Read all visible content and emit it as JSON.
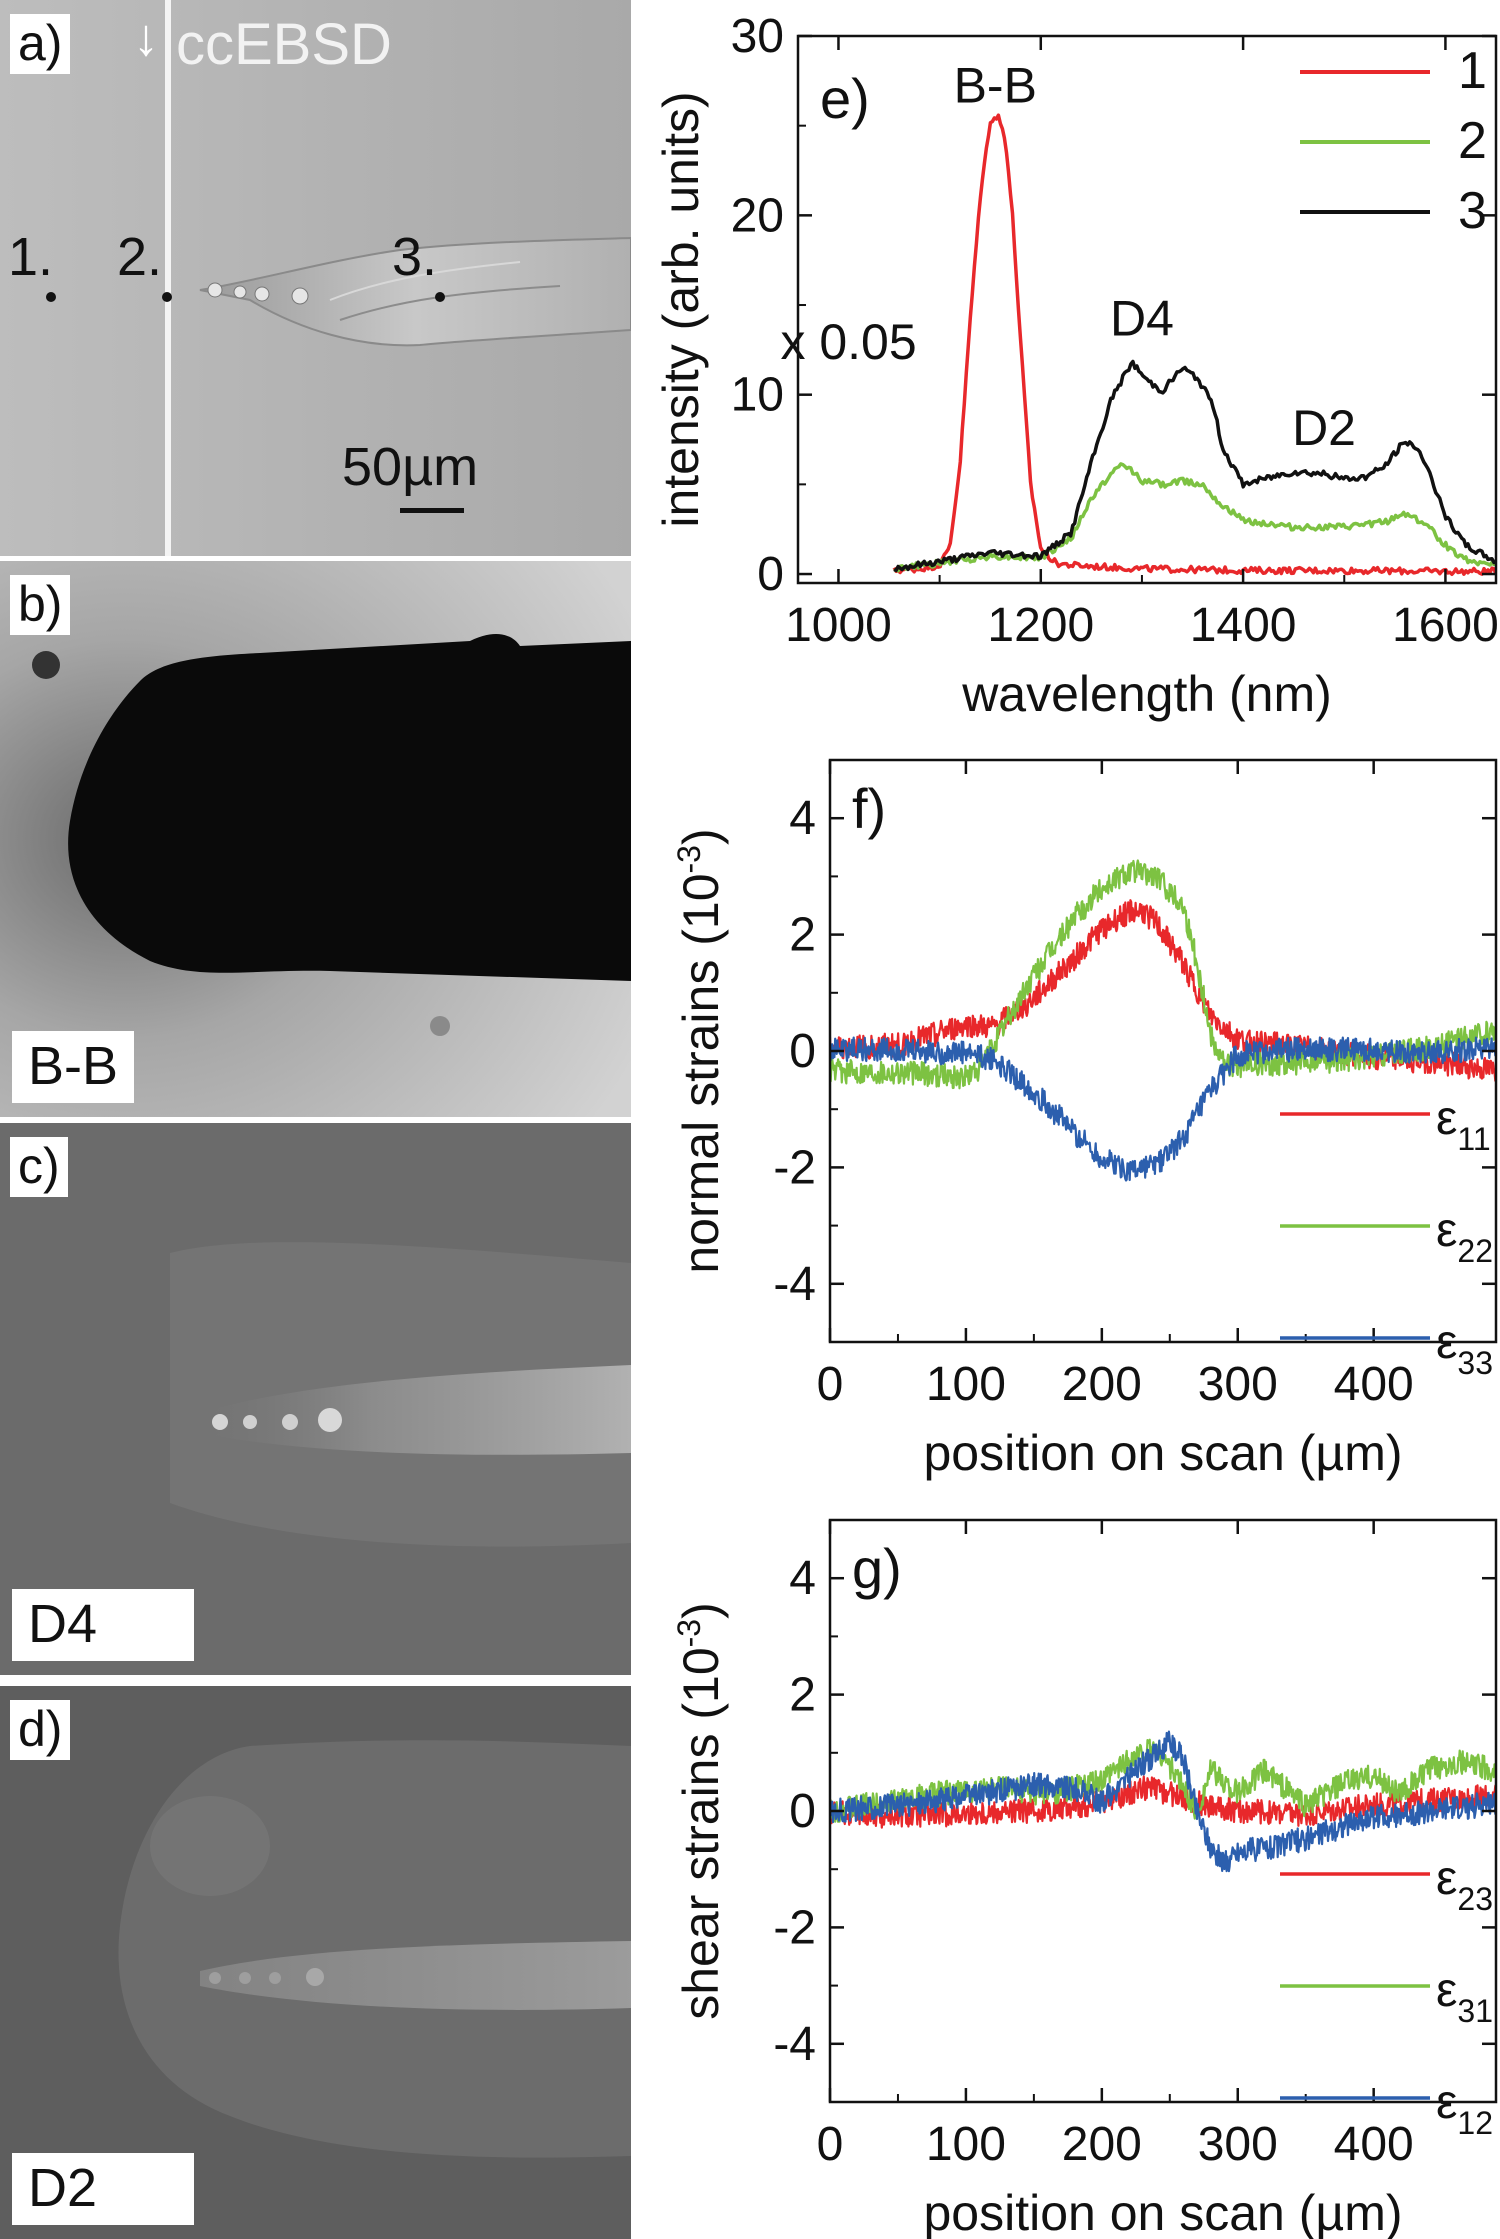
{
  "panels": {
    "a": {
      "label": "a)",
      "method": "ccEBSD",
      "arrow": "↓",
      "points": [
        "1.",
        "2.",
        "3."
      ],
      "scale_bar": "50µm"
    },
    "b": {
      "label": "b)",
      "tag": "B-B"
    },
    "c": {
      "label": "c)",
      "tag": "D4"
    },
    "d": {
      "label": "d)",
      "tag": "D2"
    }
  },
  "chart_data": [
    {
      "id": "e",
      "panel_label": "e)",
      "type": "line",
      "xlabel": "wavelength (nm)",
      "ylabel": "intensity (arb. units)",
      "xlim": [
        960,
        1650
      ],
      "ylim": [
        -0.5,
        30
      ],
      "xticks": [
        1000,
        1200,
        1400,
        1600
      ],
      "yticks": [
        0,
        10,
        20,
        30
      ],
      "annotations": [
        {
          "text": "B-B",
          "x": 1155,
          "y": 26.3
        },
        {
          "text": "x 0.05",
          "x": 1010,
          "y": 12.0
        },
        {
          "text": "D4",
          "x": 1300,
          "y": 13.3
        },
        {
          "text": "D2",
          "x": 1480,
          "y": 7.2
        }
      ],
      "legend": [
        "1",
        "2",
        "3"
      ],
      "series": [
        {
          "name": "1",
          "color": "#e8282b",
          "x": [
            1055,
            1080,
            1100,
            1110,
            1120,
            1130,
            1140,
            1150,
            1158,
            1165,
            1172,
            1180,
            1190,
            1200,
            1215,
            1230,
            1260,
            1300,
            1400,
            1500,
            1600,
            1650
          ],
          "y": [
            0.2,
            0.3,
            0.5,
            1.5,
            6,
            14,
            21,
            25.3,
            25.5,
            24.3,
            20,
            13,
            5,
            1.4,
            0.6,
            0.5,
            0.4,
            0.3,
            0.2,
            0.2,
            0.15,
            0.15
          ]
        },
        {
          "name": "2",
          "color": "#7dc242",
          "x": [
            1055,
            1100,
            1150,
            1200,
            1230,
            1250,
            1265,
            1280,
            1290,
            1300,
            1320,
            1340,
            1360,
            1380,
            1400,
            1450,
            1500,
            1540,
            1560,
            1580,
            1600,
            1620,
            1650
          ],
          "y": [
            0.3,
            0.6,
            1.0,
            0.9,
            2.0,
            4.2,
            5.3,
            6.1,
            5.8,
            5.2,
            5.0,
            5.2,
            5.0,
            3.8,
            3.0,
            2.6,
            2.6,
            2.9,
            3.4,
            2.8,
            1.6,
            0.8,
            0.5
          ]
        },
        {
          "name": "3",
          "color": "#111111",
          "x": [
            1055,
            1100,
            1150,
            1200,
            1230,
            1250,
            1270,
            1290,
            1305,
            1320,
            1340,
            1355,
            1370,
            1380,
            1400,
            1420,
            1450,
            1480,
            1500,
            1520,
            1540,
            1555,
            1565,
            1580,
            1600,
            1620,
            1650
          ],
          "y": [
            0.3,
            0.7,
            1.2,
            1.0,
            2.3,
            6.2,
            9.8,
            11.8,
            10.8,
            10.2,
            11.5,
            10.9,
            9.5,
            7.0,
            5.0,
            5.3,
            5.7,
            5.6,
            5.3,
            5.4,
            6.0,
            7.1,
            7.4,
            6.3,
            3.2,
            1.6,
            0.7
          ]
        }
      ]
    },
    {
      "id": "f",
      "panel_label": "f)",
      "type": "line",
      "xlabel": "position on scan (µm)",
      "ylabel": "normal strains",
      "ylabel_unit": "(10",
      "ylabel_exp": "-3",
      "ylabel_close": ")",
      "xlim": [
        0,
        490
      ],
      "ylim": [
        -5,
        5
      ],
      "xticks": [
        0,
        100,
        200,
        300,
        400
      ],
      "yticks": [
        -4,
        -2,
        0,
        2,
        4
      ],
      "legend": [
        {
          "sym": "ε",
          "sub": "11"
        },
        {
          "sym": "ε",
          "sub": "22"
        },
        {
          "sym": "ε",
          "sub": "33"
        }
      ],
      "series": [
        {
          "name": "ε11",
          "color": "#e8282b",
          "x": [
            0,
            50,
            100,
            120,
            150,
            180,
            200,
            220,
            230,
            240,
            260,
            280,
            300,
            350,
            400,
            450,
            490
          ],
          "y": [
            0.05,
            0.1,
            0.45,
            0.4,
            0.9,
            1.6,
            2.1,
            2.4,
            2.4,
            2.2,
            1.5,
            0.6,
            0.2,
            0.05,
            -0.1,
            -0.2,
            -0.35
          ]
        },
        {
          "name": "ε22",
          "color": "#7dc242",
          "x": [
            0,
            50,
            100,
            110,
            130,
            150,
            180,
            200,
            220,
            240,
            260,
            270,
            280,
            290,
            300,
            350,
            400,
            450,
            490
          ],
          "y": [
            -0.35,
            -0.35,
            -0.45,
            -0.3,
            0.5,
            1.3,
            2.3,
            2.8,
            3.1,
            3.0,
            2.5,
            1.5,
            0.3,
            -0.2,
            -0.25,
            -0.2,
            -0.1,
            0.1,
            0.35
          ]
        },
        {
          "name": "ε33",
          "color": "#2c5fae",
          "x": [
            0,
            50,
            100,
            120,
            150,
            180,
            200,
            220,
            240,
            260,
            280,
            300,
            350,
            400,
            450,
            490
          ],
          "y": [
            0.05,
            0.0,
            -0.05,
            -0.15,
            -0.7,
            -1.4,
            -1.85,
            -2.05,
            -1.95,
            -1.5,
            -0.7,
            -0.05,
            0.05,
            0.0,
            0.0,
            0.05
          ]
        }
      ]
    },
    {
      "id": "g",
      "panel_label": "g)",
      "type": "line",
      "xlabel": "position on scan (µm)",
      "ylabel": "shear strains",
      "ylabel_unit": "(10",
      "ylabel_exp": "-3",
      "ylabel_close": ")",
      "xlim": [
        0,
        490
      ],
      "ylim": [
        -5,
        5
      ],
      "xticks": [
        0,
        100,
        200,
        300,
        400
      ],
      "yticks": [
        -4,
        -2,
        0,
        2,
        4
      ],
      "legend": [
        {
          "sym": "ε",
          "sub": "23"
        },
        {
          "sym": "ε",
          "sub": "31"
        },
        {
          "sym": "ε",
          "sub": "12"
        }
      ],
      "series": [
        {
          "name": "ε23",
          "color": "#e8282b",
          "x": [
            0,
            50,
            100,
            150,
            200,
            230,
            250,
            270,
            300,
            350,
            400,
            450,
            490
          ],
          "y": [
            0.0,
            -0.1,
            -0.05,
            0.0,
            0.15,
            0.4,
            0.3,
            0.15,
            0.0,
            -0.05,
            0.1,
            0.2,
            0.25
          ]
        },
        {
          "name": "ε31",
          "color": "#7dc242",
          "x": [
            0,
            40,
            80,
            120,
            160,
            200,
            220,
            240,
            255,
            270,
            280,
            300,
            320,
            350,
            380,
            400,
            420,
            440,
            460,
            490
          ],
          "y": [
            0.0,
            0.15,
            0.3,
            0.4,
            0.3,
            0.5,
            0.9,
            1.1,
            0.6,
            0.0,
            0.7,
            0.3,
            0.7,
            0.1,
            0.5,
            0.6,
            0.3,
            0.7,
            0.85,
            0.7
          ]
        },
        {
          "name": "ε12",
          "color": "#2c5fae",
          "x": [
            0,
            50,
            100,
            150,
            180,
            200,
            220,
            240,
            250,
            260,
            270,
            280,
            290,
            300,
            330,
            360,
            400,
            450,
            490
          ],
          "y": [
            0.0,
            0.1,
            0.25,
            0.45,
            0.4,
            0.15,
            0.6,
            1.0,
            1.2,
            0.9,
            0.0,
            -0.6,
            -0.9,
            -0.7,
            -0.6,
            -0.4,
            -0.1,
            0.0,
            0.15
          ]
        }
      ]
    }
  ]
}
